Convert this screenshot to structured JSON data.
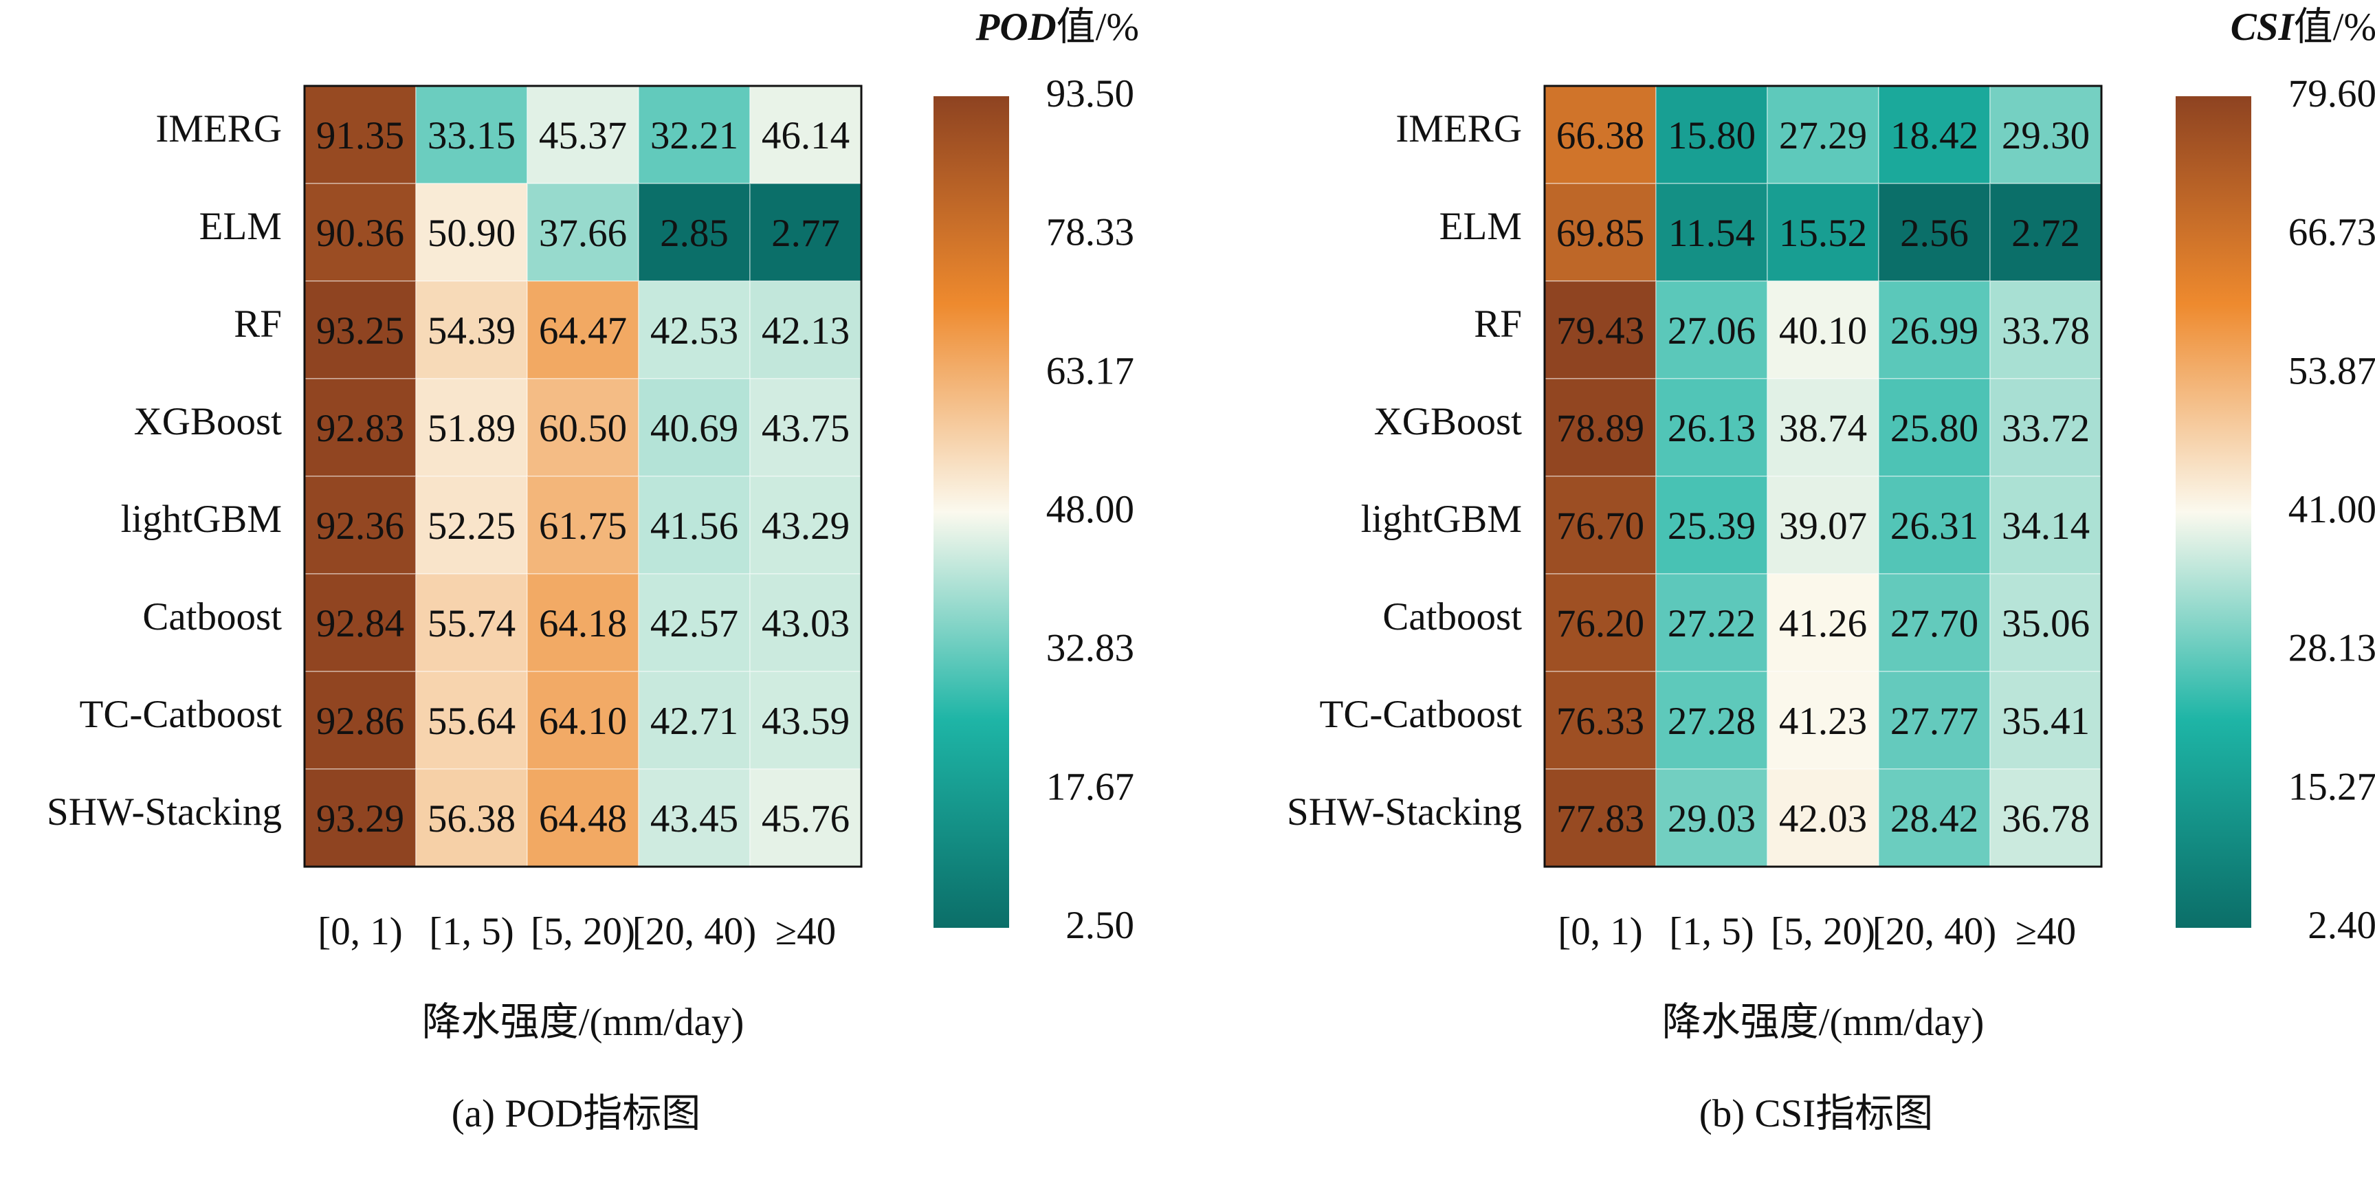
{
  "chart_data": [
    {
      "type": "heatmap",
      "caption": "(a) POD指标图",
      "colorbar_title_italic": "POD",
      "colorbar_title_suffix": "值/%",
      "xlabel": "降水强度/(mm/day)",
      "rows": [
        "IMERG",
        "ELM",
        "RF",
        "XGBoost",
        "lightGBM",
        "Catboost",
        "TC-Catboost",
        "SHW-Stacking"
      ],
      "columns": [
        "[0, 1)",
        "[1, 5)",
        "[5, 20)",
        "[20, 40)",
        "≥40"
      ],
      "values": [
        [
          91.35,
          33.15,
          45.37,
          32.21,
          46.14
        ],
        [
          90.36,
          50.9,
          37.66,
          2.85,
          2.77
        ],
        [
          93.25,
          54.39,
          64.47,
          42.53,
          42.13
        ],
        [
          92.83,
          51.89,
          60.5,
          40.69,
          43.75
        ],
        [
          92.36,
          52.25,
          61.75,
          41.56,
          43.29
        ],
        [
          92.84,
          55.74,
          64.18,
          42.57,
          43.03
        ],
        [
          92.86,
          55.64,
          64.1,
          42.71,
          43.59
        ],
        [
          93.29,
          56.38,
          64.48,
          43.45,
          45.76
        ]
      ],
      "value_labels": [
        [
          "91.35",
          "33.15",
          "45.37",
          "32.21",
          "46.14"
        ],
        [
          "90.36",
          "50.90",
          "37.66",
          "2.85",
          "2.77"
        ],
        [
          "93.25",
          "54.39",
          "64.47",
          "42.53",
          "42.13"
        ],
        [
          "92.83",
          "51.89",
          "60.50",
          "40.69",
          "43.75"
        ],
        [
          "92.36",
          "52.25",
          "61.75",
          "41.56",
          "43.29"
        ],
        [
          "92.84",
          "55.74",
          "64.18",
          "42.57",
          "43.03"
        ],
        [
          "92.86",
          "55.64",
          "64.10",
          "42.71",
          "43.59"
        ],
        [
          "93.29",
          "56.38",
          "64.48",
          "43.45",
          "45.76"
        ]
      ],
      "color_range": [
        2.5,
        93.5
      ],
      "colorbar_ticks": [
        "93.50",
        "78.33",
        "63.17",
        "48.00",
        "32.83",
        "17.67",
        "2.50"
      ]
    },
    {
      "type": "heatmap",
      "caption": "(b) CSI指标图",
      "colorbar_title_italic": "CSI",
      "colorbar_title_suffix": "值/%",
      "xlabel": "降水强度/(mm/day)",
      "rows": [
        "IMERG",
        "ELM",
        "RF",
        "XGBoost",
        "lightGBM",
        "Catboost",
        "TC-Catboost",
        "SHW-Stacking"
      ],
      "columns": [
        "[0, 1)",
        "[1, 5)",
        "[5, 20)",
        "[20, 40)",
        "≥40"
      ],
      "values": [
        [
          66.38,
          15.8,
          27.29,
          18.42,
          29.3
        ],
        [
          69.85,
          11.54,
          15.52,
          2.56,
          2.72
        ],
        [
          79.43,
          27.06,
          40.1,
          26.99,
          33.78
        ],
        [
          78.89,
          26.13,
          38.74,
          25.8,
          33.72
        ],
        [
          76.7,
          25.39,
          39.07,
          26.31,
          34.14
        ],
        [
          76.2,
          27.22,
          41.26,
          27.7,
          35.06
        ],
        [
          76.33,
          27.28,
          41.23,
          27.77,
          35.41
        ],
        [
          77.83,
          29.03,
          42.03,
          28.42,
          36.78
        ]
      ],
      "value_labels": [
        [
          "66.38",
          "15.80",
          "27.29",
          "18.42",
          "29.30"
        ],
        [
          "69.85",
          "11.54",
          "15.52",
          "2.56",
          "2.72"
        ],
        [
          "79.43",
          "27.06",
          "40.10",
          "26.99",
          "33.78"
        ],
        [
          "78.89",
          "26.13",
          "38.74",
          "25.80",
          "33.72"
        ],
        [
          "76.70",
          "25.39",
          "39.07",
          "26.31",
          "34.14"
        ],
        [
          "76.20",
          "27.22",
          "41.26",
          "27.70",
          "35.06"
        ],
        [
          "76.33",
          "27.28",
          "41.23",
          "27.77",
          "35.41"
        ],
        [
          "77.83",
          "29.03",
          "42.03",
          "28.42",
          "36.78"
        ]
      ],
      "color_range": [
        2.4,
        79.6
      ],
      "colorbar_ticks": [
        "79.60",
        "66.73",
        "53.87",
        "41.00",
        "28.13",
        "15.27",
        "2.40"
      ]
    }
  ],
  "colors": {
    "low": "#0b6e68",
    "mid_low": "#1eb5a6",
    "mid": "#fbf9ee",
    "mid_high": "#ee8a2e",
    "high": "#8e4321"
  }
}
